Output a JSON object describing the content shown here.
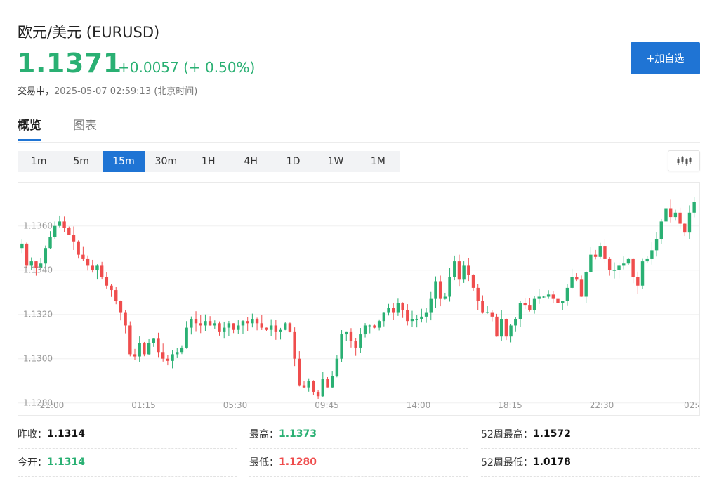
{
  "header": {
    "title": "欧元/美元  (EURUSD)",
    "price": "1.1371",
    "change": "+0.0057 (+ 0.50%)",
    "status_label": "交易中，",
    "timestamp": "2025-05-07 02:59:13  (北京时间)",
    "add_button": "+加自选"
  },
  "tabs": [
    "概览",
    "图表"
  ],
  "intervals": [
    "1m",
    "5m",
    "15m",
    "30m",
    "1H",
    "4H",
    "1D",
    "1W",
    "1M"
  ],
  "selected_interval": "15m",
  "colors": {
    "up": "#2ab073",
    "down": "#ef4d4d",
    "accent": "#1f74d4"
  },
  "chart_data": {
    "type": "candlestick",
    "y_ticks": [
      "1.1360",
      "1.1340",
      "1.1320",
      "1.1300",
      "1.1280"
    ],
    "x_ticks": [
      "21:00",
      "01:15",
      "05:30",
      "09:45",
      "14:00",
      "18:15",
      "22:30",
      "02:4"
    ],
    "ylim": [
      1.1278,
      1.1378
    ],
    "grid": true,
    "close_series": [
      1.1352,
      1.1342,
      1.1344,
      1.1341,
      1.1343,
      1.135,
      1.1355,
      1.136,
      1.1362,
      1.1359,
      1.1356,
      1.1353,
      1.1347,
      1.1345,
      1.1342,
      1.134,
      1.1342,
      1.1337,
      1.1333,
      1.1331,
      1.1326,
      1.1321,
      1.1315,
      1.1302,
      1.1301,
      1.1307,
      1.1302,
      1.1307,
      1.1309,
      1.1303,
      1.13,
      1.1299,
      1.1302,
      1.1303,
      1.1305,
      1.1314,
      1.1318,
      1.1316,
      1.1315,
      1.1317,
      1.1315,
      1.1316,
      1.1312,
      1.1314,
      1.1316,
      1.1313,
      1.1315,
      1.1317,
      1.1316,
      1.1318,
      1.1316,
      1.1314,
      1.1313,
      1.1315,
      1.1312,
      1.1313,
      1.1316,
      1.1312,
      1.13,
      1.1288,
      1.1287,
      1.129,
      1.1285,
      1.1283,
      1.1291,
      1.1287,
      1.1292,
      1.13,
      1.1311,
      1.1312,
      1.1308,
      1.1305,
      1.1311,
      1.1315,
      1.1315,
      1.1314,
      1.1317,
      1.1321,
      1.1323,
      1.1321,
      1.1325,
      1.1322,
      1.1317,
      1.1318,
      1.1318,
      1.1319,
      1.1321,
      1.1327,
      1.1335,
      1.1327,
      1.1328,
      1.1337,
      1.1344,
      1.1336,
      1.1342,
      1.1338,
      1.1332,
      1.1326,
      1.1321,
      1.1321,
      1.1319,
      1.131,
      1.1318,
      1.131,
      1.1315,
      1.1318,
      1.1325,
      1.1324,
      1.1322,
      1.1327,
      1.1328,
      1.1328,
      1.1329,
      1.1327,
      1.1325,
      1.1326,
      1.1332,
      1.1337,
      1.1336,
      1.1328,
      1.1339,
      1.1347,
      1.1346,
      1.1351,
      1.1345,
      1.134,
      1.134,
      1.1342,
      1.1343,
      1.1345,
      1.1337,
      1.1333,
      1.1344,
      1.1345,
      1.1349,
      1.1354,
      1.1362,
      1.1368,
      1.1364,
      1.1366,
      1.1361,
      1.1357,
      1.1366,
      1.1371
    ]
  },
  "stats": {
    "prev_close_label": "昨收：",
    "prev_close": "1.1314",
    "open_label": "今开：",
    "open": "1.1314",
    "high_label": "最高：",
    "high": "1.1373",
    "low_label": "最低：",
    "low": "1.1280",
    "w52_high_label": "52周最高：",
    "w52_high": "1.1572",
    "w52_low_label": "52周最低：",
    "w52_low": "1.0178"
  }
}
